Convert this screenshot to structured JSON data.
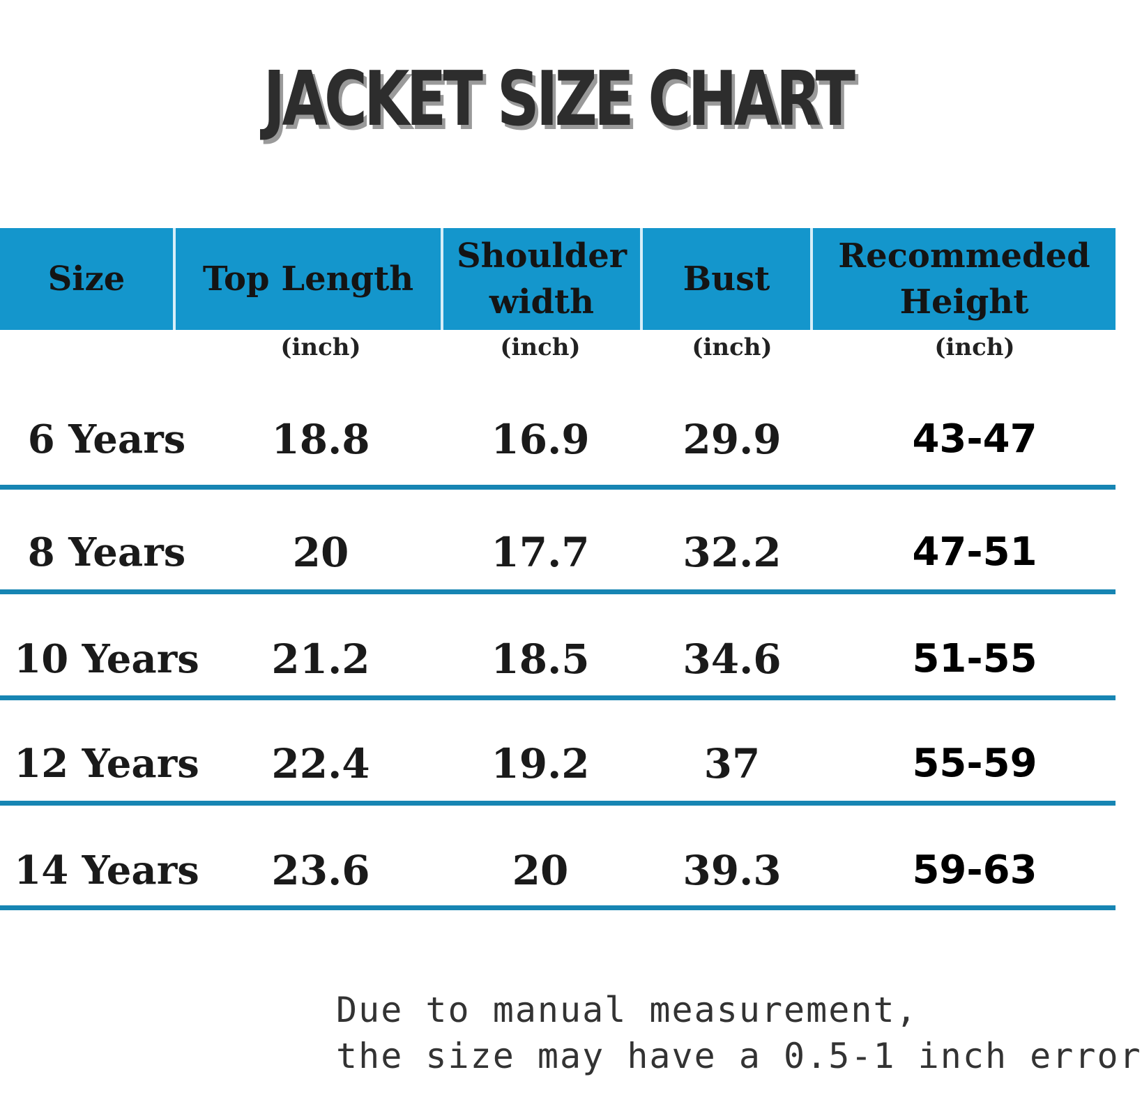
{
  "title": "JACKET SIZE CHART",
  "colors": {
    "header_bg": "#1496cc",
    "row_line": "#1785b3",
    "title_text": "#2d2d2d"
  },
  "chart_data": {
    "type": "table",
    "title": "JACKET SIZE CHART",
    "columns": [
      {
        "label": "Size",
        "unit": ""
      },
      {
        "label": "Top Length",
        "unit": "(inch)"
      },
      {
        "label": "Shoulder\nwidth",
        "unit": "(inch)"
      },
      {
        "label": "Bust",
        "unit": "(inch)"
      },
      {
        "label": "Recommeded\nHeight",
        "unit": "(inch)"
      }
    ],
    "rows": [
      [
        "6 Years",
        "18.8",
        "16.9",
        "29.9",
        "43-47"
      ],
      [
        "8 Years",
        "20",
        "17.7",
        "32.2",
        "47-51"
      ],
      [
        "10 Years",
        "21.2",
        "18.5",
        "34.6",
        "51-55"
      ],
      [
        "12 Years",
        "22.4",
        "19.2",
        "37",
        "55-59"
      ],
      [
        "14 Years",
        "23.6",
        "20",
        "39.3",
        "59-63"
      ]
    ]
  },
  "note": {
    "line1": "Due to manual measurement,",
    "line2": "the size may have a 0.5-1 inch error"
  }
}
